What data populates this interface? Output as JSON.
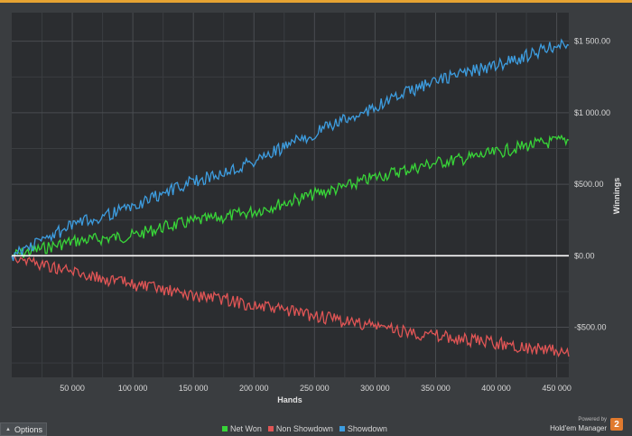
{
  "chart_data": {
    "type": "line",
    "xlabel": "Hands",
    "ylabel": "Winnings",
    "xlim": [
      0,
      460000
    ],
    "ylim": [
      -850,
      1700
    ],
    "x_ticks": [
      50000,
      100000,
      150000,
      200000,
      250000,
      300000,
      350000,
      400000,
      450000
    ],
    "x_tick_labels": [
      "50 000",
      "100 000",
      "150 000",
      "200 000",
      "250 000",
      "300 000",
      "350 000",
      "400 000",
      "450 000"
    ],
    "y_ticks": [
      -500,
      0,
      500,
      1000,
      1500
    ],
    "y_tick_labels": [
      "-$500.00",
      "$0.00",
      "$500.00",
      "$1 000.00",
      "$1 500.00"
    ],
    "grid": true,
    "legend_position": "bottom-center",
    "x": [
      0,
      25000,
      50000,
      75000,
      100000,
      125000,
      150000,
      175000,
      200000,
      225000,
      250000,
      275000,
      300000,
      325000,
      350000,
      375000,
      400000,
      425000,
      450000,
      460000
    ],
    "series": [
      {
        "name": "Net Won",
        "color": "#38d538",
        "values": [
          0,
          50,
          100,
          120,
          140,
          200,
          240,
          270,
          310,
          370,
          430,
          480,
          550,
          600,
          650,
          680,
          720,
          770,
          800,
          810
        ]
      },
      {
        "name": "Non Showdown",
        "color": "#e05555",
        "values": [
          0,
          -60,
          -110,
          -160,
          -200,
          -240,
          -280,
          -300,
          -350,
          -380,
          -420,
          -460,
          -490,
          -530,
          -560,
          -590,
          -610,
          -640,
          -670,
          -690
        ]
      },
      {
        "name": "Showdown",
        "color": "#3d9de0",
        "values": [
          0,
          110,
          210,
          280,
          340,
          440,
          520,
          580,
          660,
          760,
          860,
          950,
          1040,
          1140,
          1220,
          1280,
          1330,
          1400,
          1470,
          1500
        ]
      }
    ]
  },
  "controls": {
    "options_label": "Options"
  },
  "branding": {
    "powered_by": "Powered by",
    "product": "Hold'em Manager",
    "logo_glyph": "2"
  }
}
